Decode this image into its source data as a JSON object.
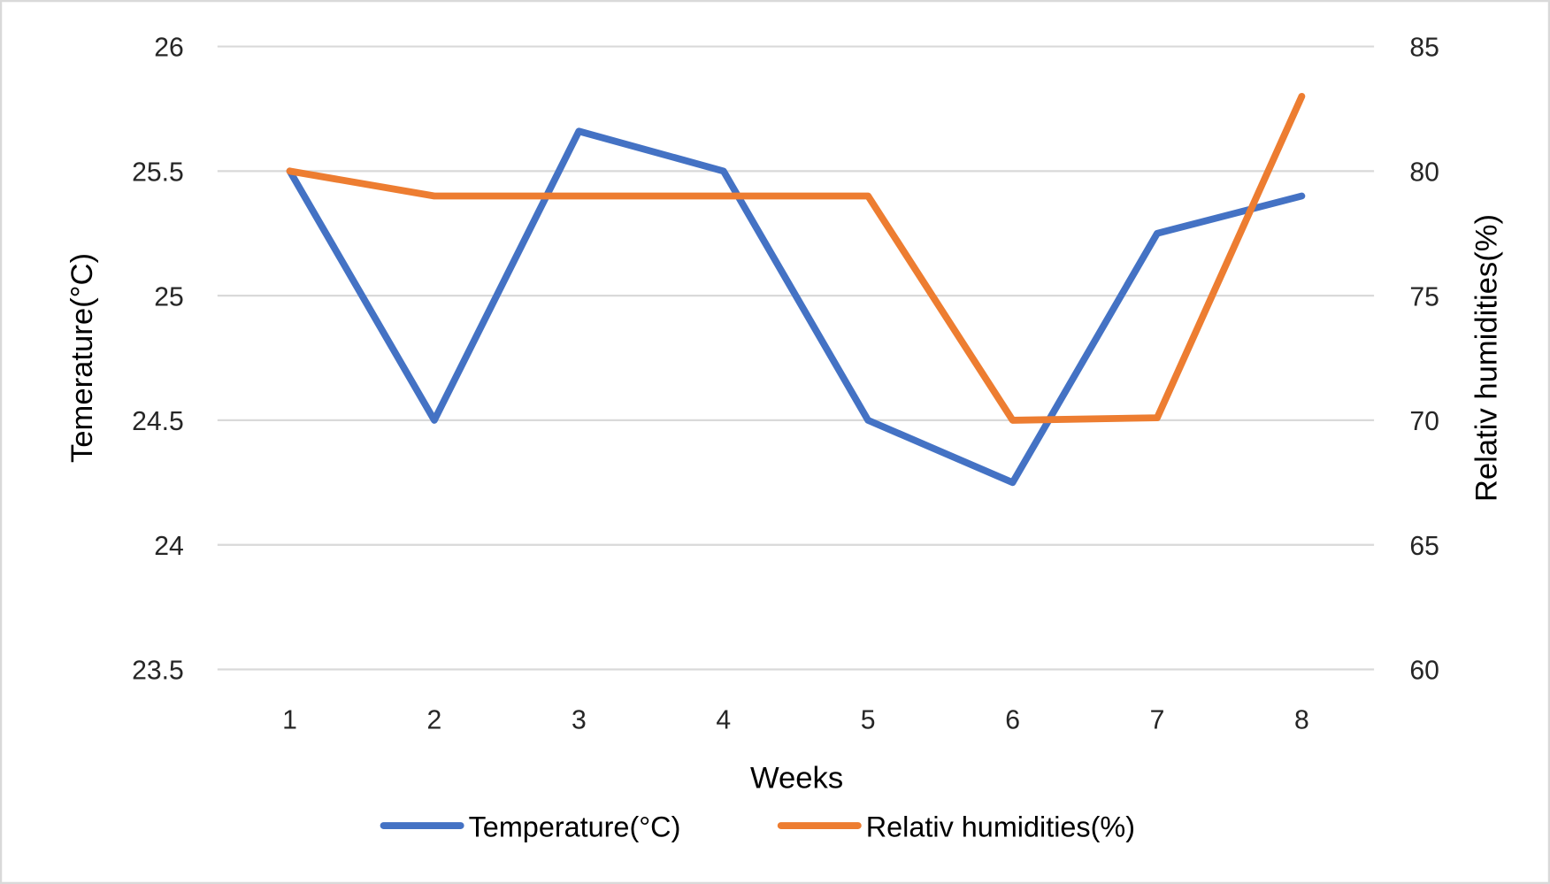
{
  "chart_data": {
    "type": "line",
    "title": "",
    "xlabel": "Weeks",
    "ylabel": "Temerature(°C)",
    "y2label": "Relativ humidities(%)",
    "categories": [
      "1",
      "2",
      "3",
      "4",
      "5",
      "6",
      "7",
      "8"
    ],
    "ylim": [
      23.5,
      26
    ],
    "y2lim": [
      60,
      85
    ],
    "yticks": [
      "26",
      "25.5",
      "25",
      "24.5",
      "24",
      "23.5"
    ],
    "y2ticks": [
      "85",
      "80",
      "75",
      "70",
      "65",
      "60"
    ],
    "grid": true,
    "legend_position": "bottom",
    "series": [
      {
        "name": "Temperature(°C)",
        "axis": "left",
        "color": "#4472C4",
        "values": [
          25.5,
          24.5,
          25.66,
          25.5,
          24.5,
          24.25,
          25.25,
          25.4
        ]
      },
      {
        "name": "Relativ humidities(%)",
        "axis": "right",
        "color": "#ED7D31",
        "values": [
          80,
          79,
          79,
          79,
          79,
          70,
          70.1,
          83
        ]
      }
    ]
  }
}
